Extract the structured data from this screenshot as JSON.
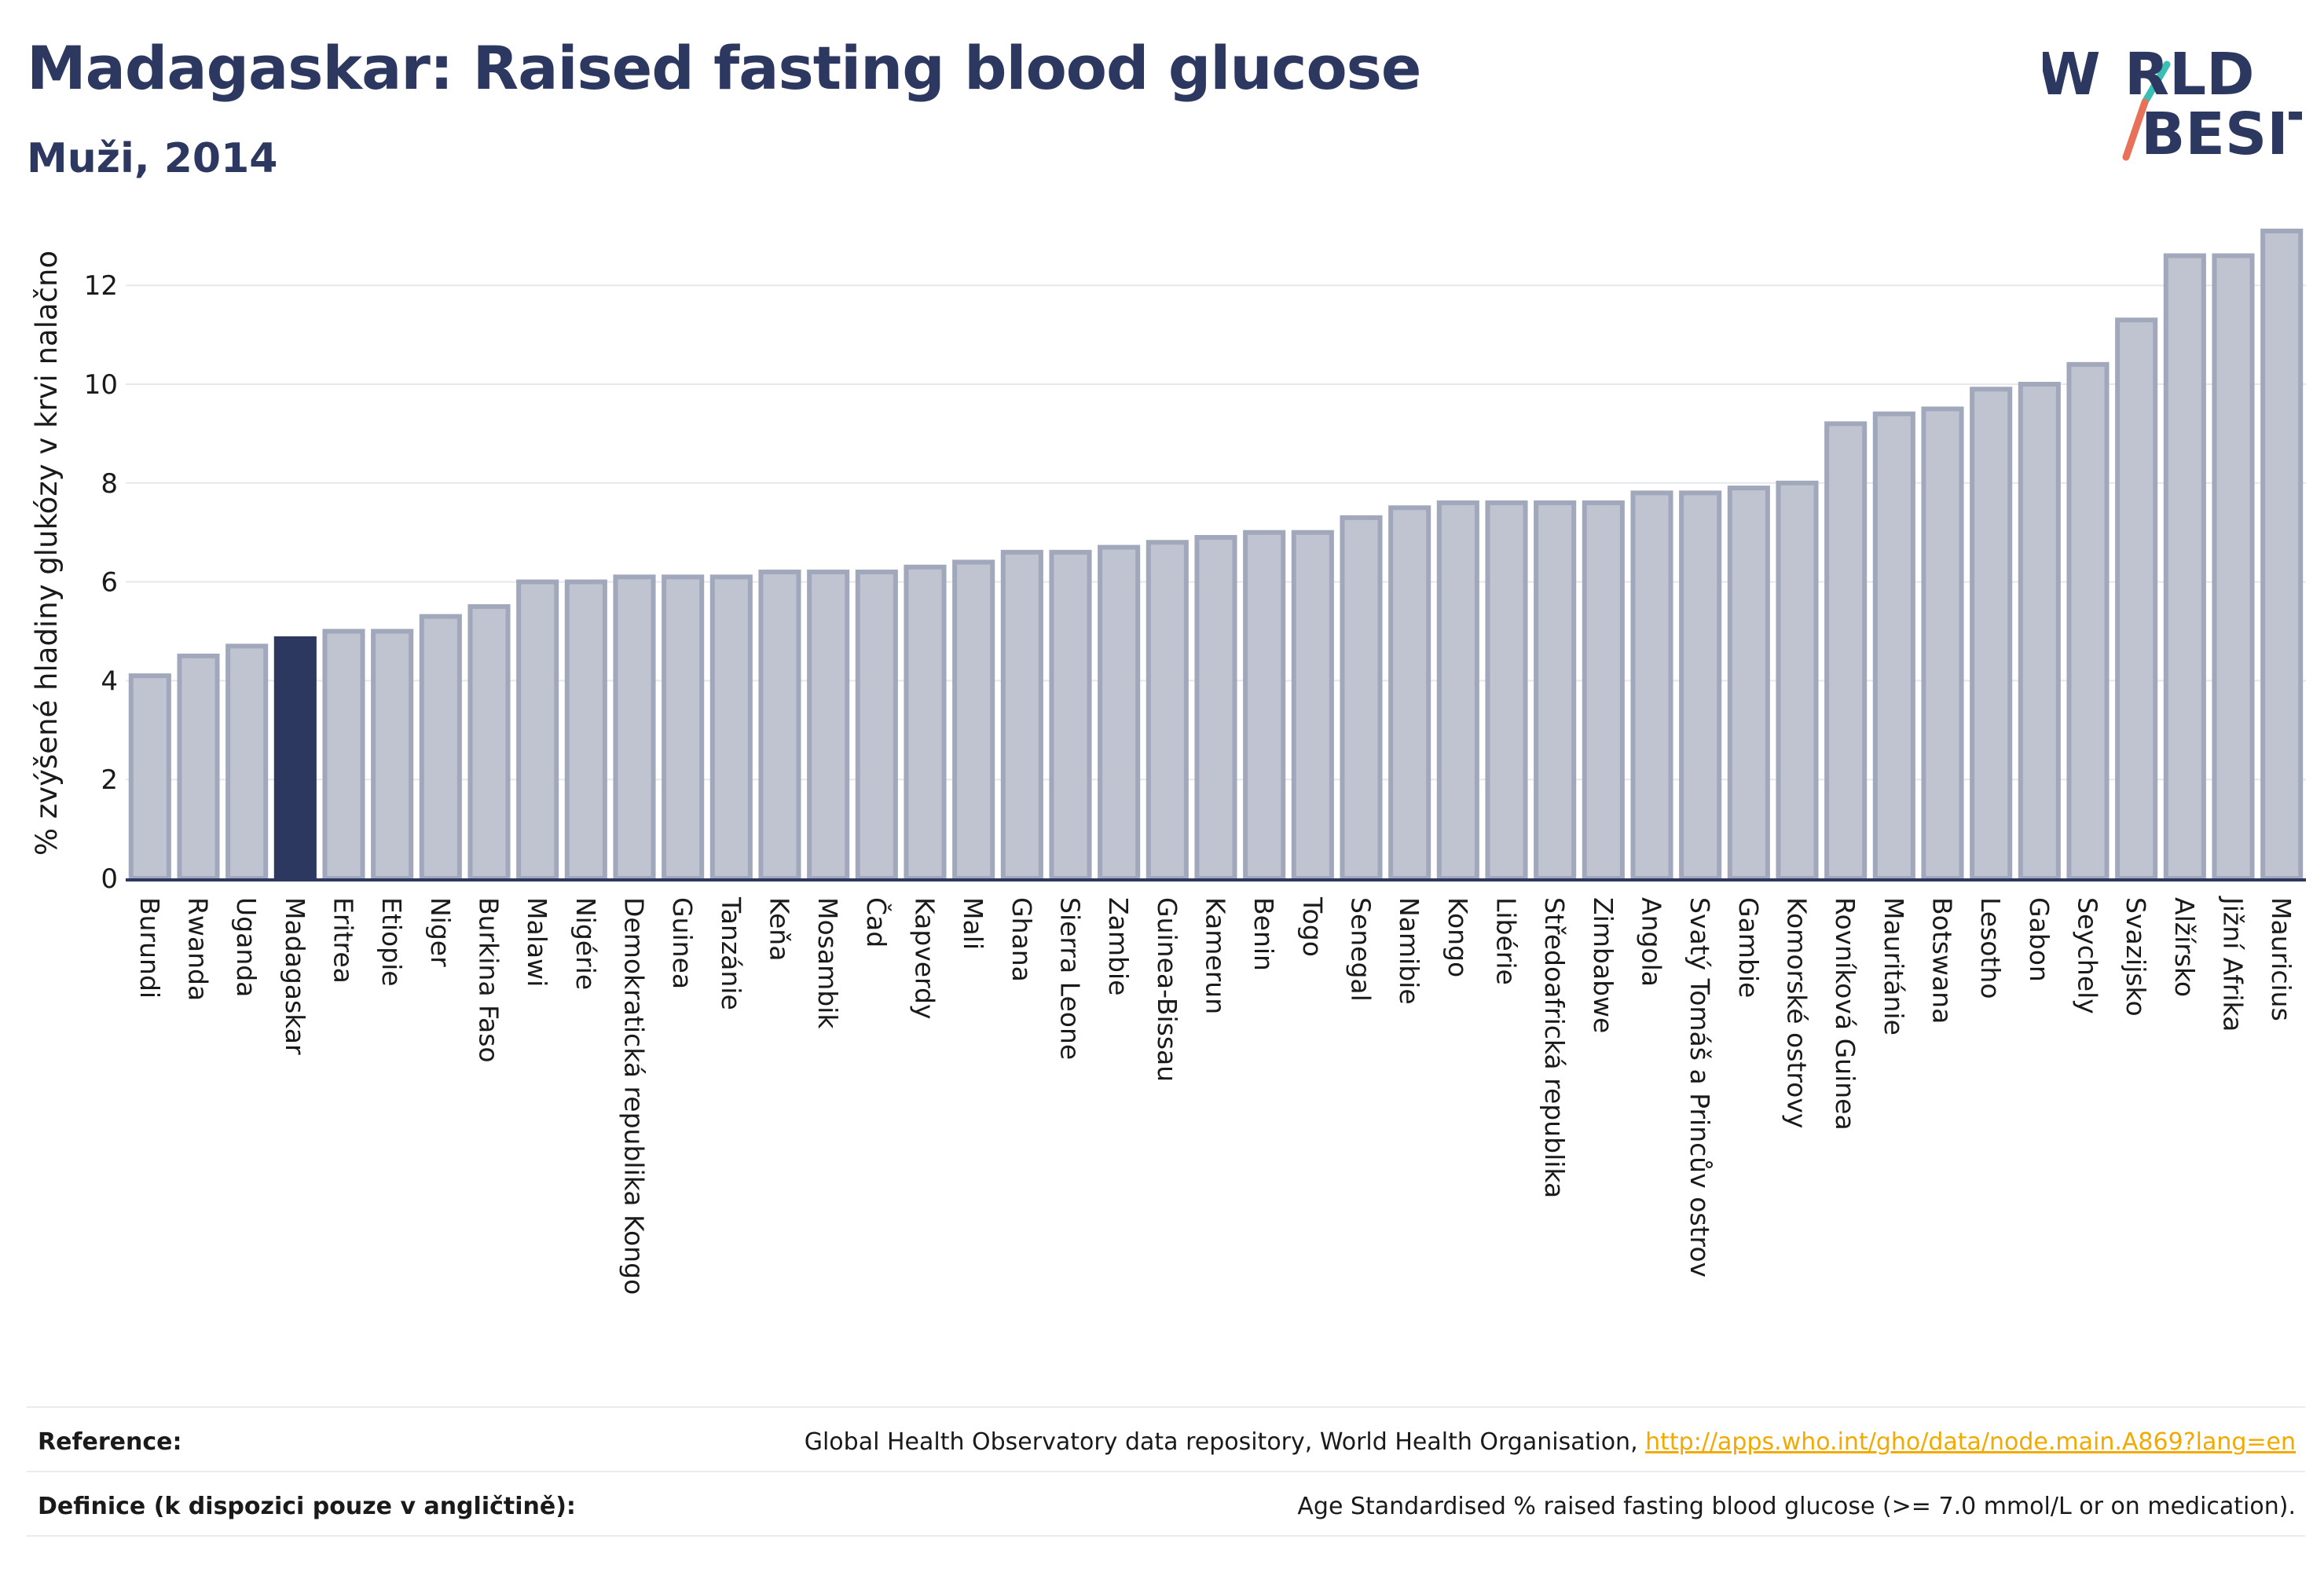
{
  "header": {
    "title": "Madagaskar: Raised fasting blood glucose",
    "subtitle": "Muži, 2014"
  },
  "logo": {
    "line1": "W RLD",
    "line2": "BESITY",
    "alt": "WORLD OBESITY",
    "colors": {
      "text": "#2d3861",
      "slash_top": "#3bbfb4",
      "slash_bottom": "#e8715a"
    }
  },
  "chart_data": {
    "type": "bar",
    "title": "",
    "xlabel": "",
    "ylabel": "% zvýšené hladiny glukózy v krvi nalačno",
    "ylim": [
      0,
      13.8
    ],
    "yticks": [
      "0",
      "2",
      "4",
      "6",
      "8",
      "10",
      "12"
    ],
    "grid": true,
    "highlight": "Madagaskar",
    "colors": {
      "bar": "#c0c4d1",
      "bar_edge": "#a2a8bb",
      "highlight": "#2d3861",
      "axis": "#2d3861",
      "grid": "#e6e8ee",
      "text": "#1a1a1a"
    },
    "categories": [
      "Burundi",
      "Rwanda",
      "Uganda",
      "Madagaskar",
      "Eritrea",
      "Etiopie",
      "Niger",
      "Burkina Faso",
      "Malawi",
      "Nigérie",
      "Demokratická republika Kongo",
      "Guinea",
      "Tanzánie",
      "Keňa",
      "Mosambik",
      "Čad",
      "Kapverdy",
      "Mali",
      "Ghana",
      "Sierra Leone",
      "Zambie",
      "Guinea-Bissau",
      "Kamerun",
      "Benin",
      "Togo",
      "Senegal",
      "Namibie",
      "Kongo",
      "Libérie",
      "Středoafrická republika",
      "Zimbabwe",
      "Angola",
      "Svatý Tomáš a Princův ostrov",
      "Gambie",
      "Komorské ostrovy",
      "Rovníková Guinea",
      "Mauritánie",
      "Botswana",
      "Lesotho",
      "Gabon",
      "Seychely",
      "Svazijsko",
      "Alžírsko",
      "Jižní Afrika",
      "Mauricius"
    ],
    "values": [
      4.1,
      4.5,
      4.7,
      4.85,
      5.0,
      5.0,
      5.3,
      5.5,
      6.0,
      6.0,
      6.1,
      6.1,
      6.1,
      6.2,
      6.2,
      6.2,
      6.3,
      6.4,
      6.6,
      6.6,
      6.7,
      6.8,
      6.9,
      7.0,
      7.0,
      7.3,
      7.5,
      7.6,
      7.6,
      7.6,
      7.6,
      7.8,
      7.8,
      7.9,
      8.0,
      9.2,
      9.4,
      9.5,
      9.9,
      10.0,
      10.4,
      11.3,
      12.6,
      12.6,
      13.1
    ]
  },
  "footer": {
    "reference_label": "Reference:",
    "reference_text": "Global Health Observatory data repository, World Health Organisation, ",
    "reference_link": "http://apps.who.int/gho/data/node.main.A869?lang=en",
    "definition_label": "Definice (k dispozici pouze v angličtině):",
    "definition_text": "Age Standardised % raised fasting blood glucose (>= 7.0 mmol/L or on medication)."
  }
}
